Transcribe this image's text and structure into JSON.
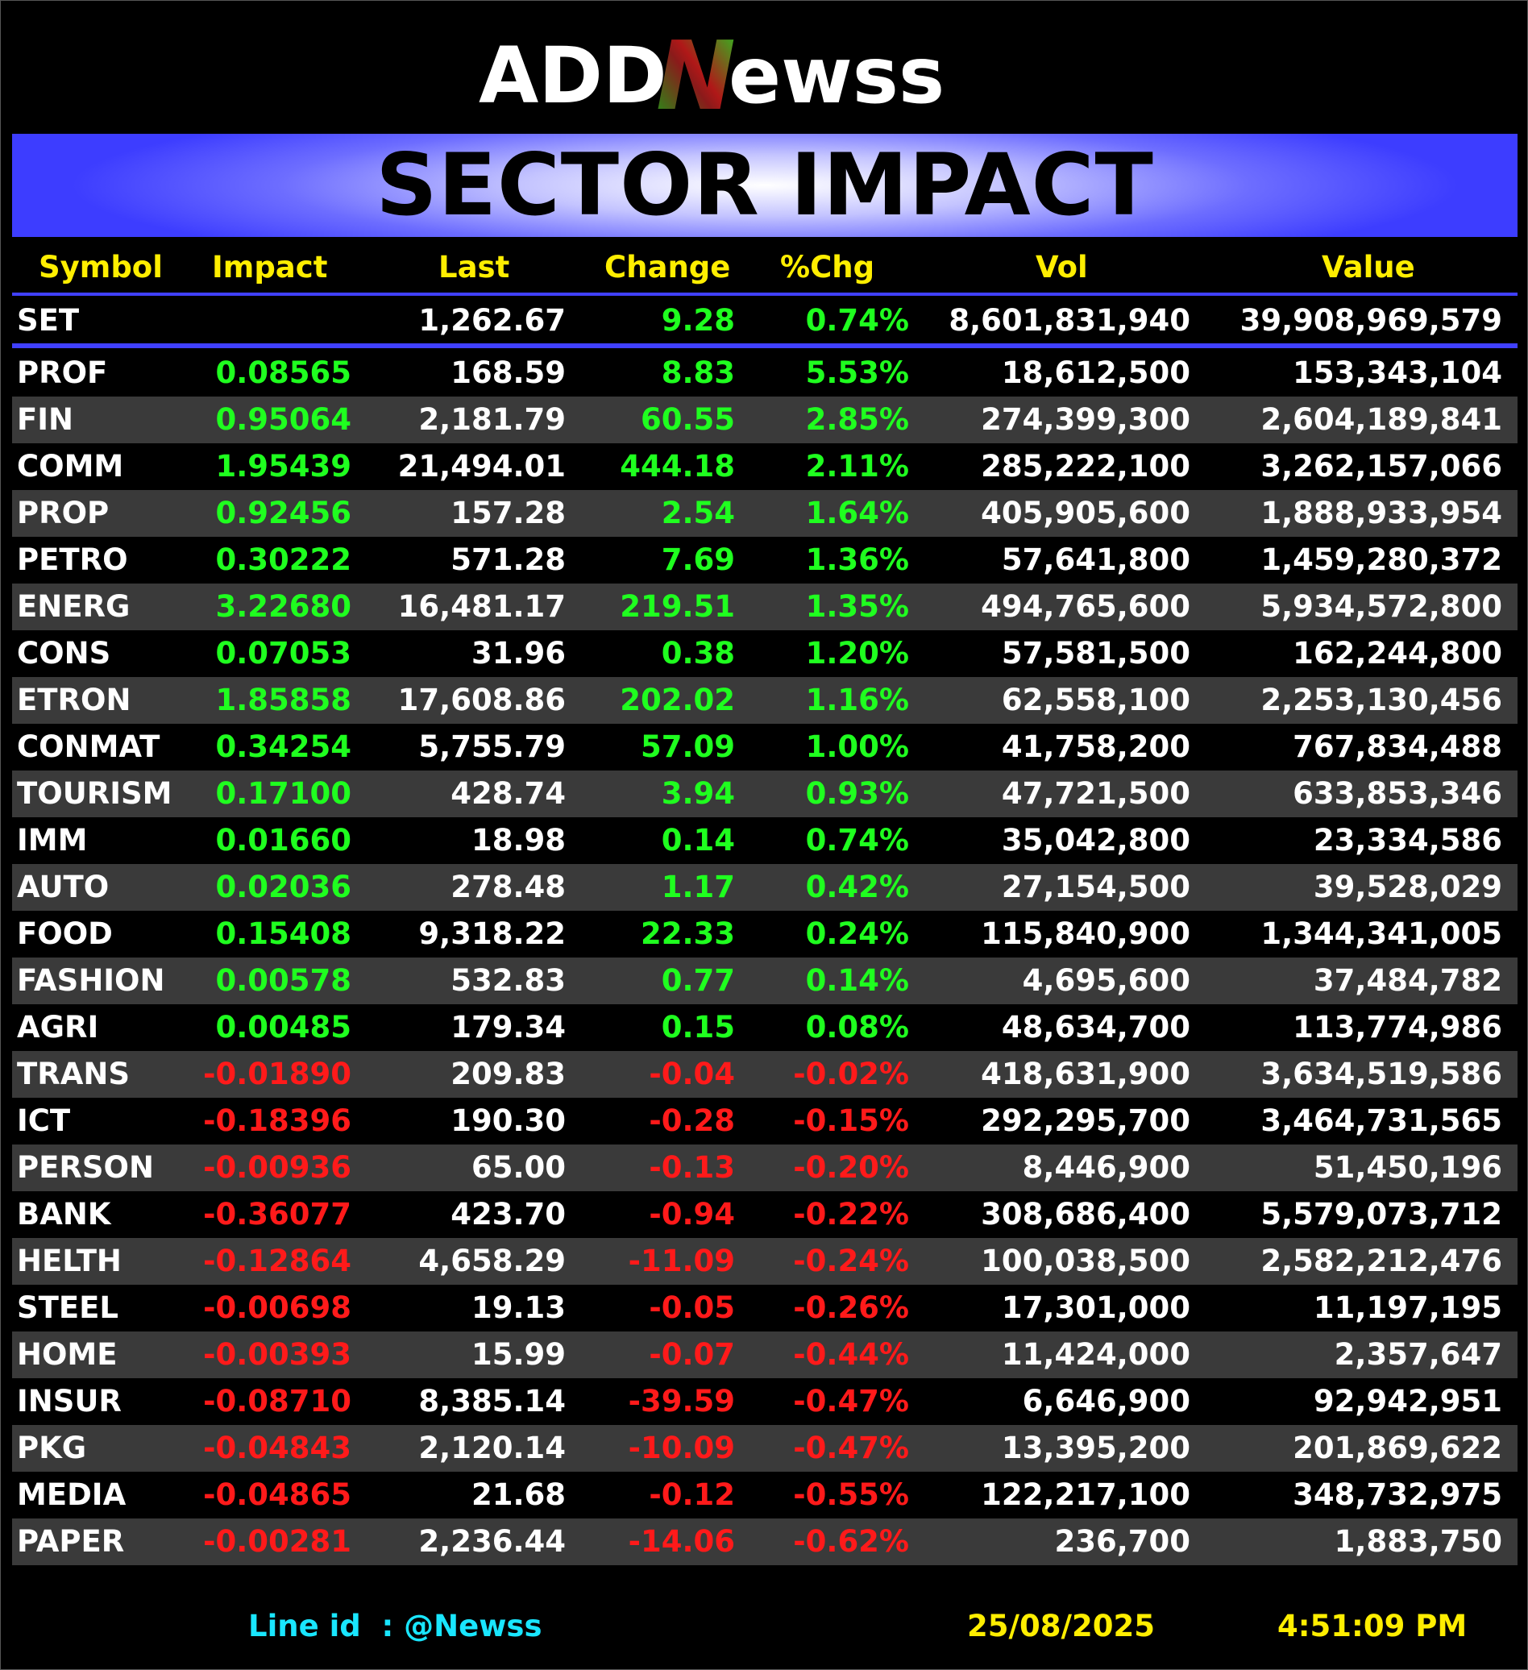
{
  "logo": {
    "text_left": "ADD",
    "text_n": "N",
    "text_right": "ewss"
  },
  "banner": {
    "title": "SECTOR IMPACT",
    "color_start": "#3d3dff",
    "color_center": "#ffffff"
  },
  "colors": {
    "header": "#ffee00",
    "up": "#1fff1f",
    "down": "#ff1a1a",
    "rule": "#4040ff",
    "row_alt": "#3a3a3a",
    "footer_line": "#19e6ff"
  },
  "headers": {
    "symbol": "Symbol",
    "impact": "Impact",
    "last": "Last",
    "change": "Change",
    "pct": "%Chg",
    "vol": "Vol",
    "value": "Value"
  },
  "index_row": {
    "symbol": "SET",
    "impact": "",
    "last": "1,262.67",
    "change": "9.28",
    "pct": "0.74%",
    "vol": "8,601,831,940",
    "value": "39,908,969,579",
    "dir": "up"
  },
  "rows": [
    {
      "symbol": "PROF",
      "impact": "0.08565",
      "last": "168.59",
      "change": "8.83",
      "pct": "5.53%",
      "vol": "18,612,500",
      "value": "153,343,104",
      "dir": "up"
    },
    {
      "symbol": "FIN",
      "impact": "0.95064",
      "last": "2,181.79",
      "change": "60.55",
      "pct": "2.85%",
      "vol": "274,399,300",
      "value": "2,604,189,841",
      "dir": "up"
    },
    {
      "symbol": "COMM",
      "impact": "1.95439",
      "last": "21,494.01",
      "change": "444.18",
      "pct": "2.11%",
      "vol": "285,222,100",
      "value": "3,262,157,066",
      "dir": "up"
    },
    {
      "symbol": "PROP",
      "impact": "0.92456",
      "last": "157.28",
      "change": "2.54",
      "pct": "1.64%",
      "vol": "405,905,600",
      "value": "1,888,933,954",
      "dir": "up"
    },
    {
      "symbol": "PETRO",
      "impact": "0.30222",
      "last": "571.28",
      "change": "7.69",
      "pct": "1.36%",
      "vol": "57,641,800",
      "value": "1,459,280,372",
      "dir": "up"
    },
    {
      "symbol": "ENERG",
      "impact": "3.22680",
      "last": "16,481.17",
      "change": "219.51",
      "pct": "1.35%",
      "vol": "494,765,600",
      "value": "5,934,572,800",
      "dir": "up"
    },
    {
      "symbol": "CONS",
      "impact": "0.07053",
      "last": "31.96",
      "change": "0.38",
      "pct": "1.20%",
      "vol": "57,581,500",
      "value": "162,244,800",
      "dir": "up"
    },
    {
      "symbol": "ETRON",
      "impact": "1.85858",
      "last": "17,608.86",
      "change": "202.02",
      "pct": "1.16%",
      "vol": "62,558,100",
      "value": "2,253,130,456",
      "dir": "up"
    },
    {
      "symbol": "CONMAT",
      "impact": "0.34254",
      "last": "5,755.79",
      "change": "57.09",
      "pct": "1.00%",
      "vol": "41,758,200",
      "value": "767,834,488",
      "dir": "up"
    },
    {
      "symbol": "TOURISM",
      "impact": "0.17100",
      "last": "428.74",
      "change": "3.94",
      "pct": "0.93%",
      "vol": "47,721,500",
      "value": "633,853,346",
      "dir": "up"
    },
    {
      "symbol": "IMM",
      "impact": "0.01660",
      "last": "18.98",
      "change": "0.14",
      "pct": "0.74%",
      "vol": "35,042,800",
      "value": "23,334,586",
      "dir": "up"
    },
    {
      "symbol": "AUTO",
      "impact": "0.02036",
      "last": "278.48",
      "change": "1.17",
      "pct": "0.42%",
      "vol": "27,154,500",
      "value": "39,528,029",
      "dir": "up"
    },
    {
      "symbol": "FOOD",
      "impact": "0.15408",
      "last": "9,318.22",
      "change": "22.33",
      "pct": "0.24%",
      "vol": "115,840,900",
      "value": "1,344,341,005",
      "dir": "up"
    },
    {
      "symbol": "FASHION",
      "impact": "0.00578",
      "last": "532.83",
      "change": "0.77",
      "pct": "0.14%",
      "vol": "4,695,600",
      "value": "37,484,782",
      "dir": "up"
    },
    {
      "symbol": "AGRI",
      "impact": "0.00485",
      "last": "179.34",
      "change": "0.15",
      "pct": "0.08%",
      "vol": "48,634,700",
      "value": "113,774,986",
      "dir": "up"
    },
    {
      "symbol": "TRANS",
      "impact": "-0.01890",
      "last": "209.83",
      "change": "-0.04",
      "pct": "-0.02%",
      "vol": "418,631,900",
      "value": "3,634,519,586",
      "dir": "down"
    },
    {
      "symbol": "ICT",
      "impact": "-0.18396",
      "last": "190.30",
      "change": "-0.28",
      "pct": "-0.15%",
      "vol": "292,295,700",
      "value": "3,464,731,565",
      "dir": "down"
    },
    {
      "symbol": "PERSON",
      "impact": "-0.00936",
      "last": "65.00",
      "change": "-0.13",
      "pct": "-0.20%",
      "vol": "8,446,900",
      "value": "51,450,196",
      "dir": "down"
    },
    {
      "symbol": "BANK",
      "impact": "-0.36077",
      "last": "423.70",
      "change": "-0.94",
      "pct": "-0.22%",
      "vol": "308,686,400",
      "value": "5,579,073,712",
      "dir": "down"
    },
    {
      "symbol": "HELTH",
      "impact": "-0.12864",
      "last": "4,658.29",
      "change": "-11.09",
      "pct": "-0.24%",
      "vol": "100,038,500",
      "value": "2,582,212,476",
      "dir": "down"
    },
    {
      "symbol": "STEEL",
      "impact": "-0.00698",
      "last": "19.13",
      "change": "-0.05",
      "pct": "-0.26%",
      "vol": "17,301,000",
      "value": "11,197,195",
      "dir": "down"
    },
    {
      "symbol": "HOME",
      "impact": "-0.00393",
      "last": "15.99",
      "change": "-0.07",
      "pct": "-0.44%",
      "vol": "11,424,000",
      "value": "2,357,647",
      "dir": "down"
    },
    {
      "symbol": "INSUR",
      "impact": "-0.08710",
      "last": "8,385.14",
      "change": "-39.59",
      "pct": "-0.47%",
      "vol": "6,646,900",
      "value": "92,942,951",
      "dir": "down"
    },
    {
      "symbol": "PKG",
      "impact": "-0.04843",
      "last": "2,120.14",
      "change": "-10.09",
      "pct": "-0.47%",
      "vol": "13,395,200",
      "value": "201,869,622",
      "dir": "down"
    },
    {
      "symbol": "MEDIA",
      "impact": "-0.04865",
      "last": "21.68",
      "change": "-0.12",
      "pct": "-0.55%",
      "vol": "122,217,100",
      "value": "348,732,975",
      "dir": "down"
    },
    {
      "symbol": "PAPER",
      "impact": "-0.00281",
      "last": "2,236.44",
      "change": "-14.06",
      "pct": "-0.62%",
      "vol": "236,700",
      "value": "1,883,750",
      "dir": "down"
    }
  ],
  "footer": {
    "line_label": "Line id  : @Newss",
    "date": "25/08/2025",
    "time": "4:51:09 PM"
  }
}
